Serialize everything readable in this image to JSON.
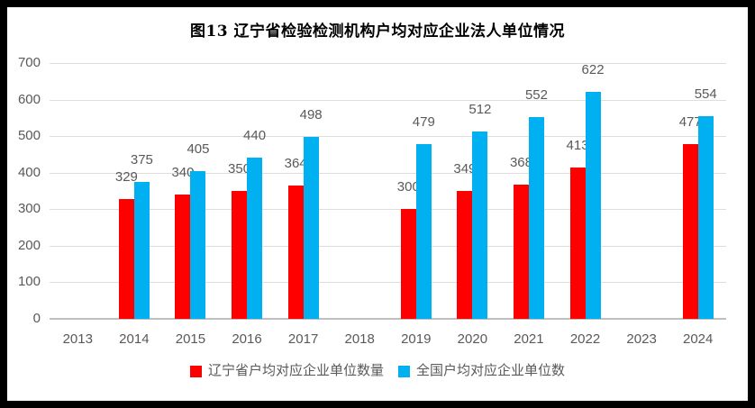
{
  "title": "图13 辽宁省检验检测机构户均对应企业法人单位情况",
  "colors": {
    "series1": "#FF0000",
    "series2": "#00B0F0",
    "gridline": "#DEDEDE",
    "axis_line": "#BFBFBF",
    "label_text": "#595959",
    "title_text": "#000000",
    "border": "#000000",
    "background": "#FFFFFF"
  },
  "chart_data": {
    "type": "bar",
    "title": "图13 辽宁省检验检测机构户均对应企业法人单位情况",
    "categories": [
      "2013",
      "2014",
      "2015",
      "2016",
      "2017",
      "2018",
      "2019",
      "2020",
      "2021",
      "2022",
      "2023",
      "2024"
    ],
    "series": [
      {
        "name": "辽宁省户均对应企业单位数量",
        "color": "#FF0000",
        "values": [
          null,
          329,
          340,
          350,
          364,
          null,
          300,
          349,
          368,
          413,
          null,
          477
        ]
      },
      {
        "name": "全国户均对应企业单位数",
        "color": "#00B0F0",
        "values": [
          null,
          375,
          405,
          440,
          498,
          null,
          479,
          512,
          552,
          622,
          null,
          554
        ]
      }
    ],
    "xlabel": "",
    "ylabel": "",
    "ylim": [
      0,
      700
    ],
    "ytick_interval": 100,
    "grid": true,
    "data_labels": true,
    "legend_position": "bottom"
  }
}
